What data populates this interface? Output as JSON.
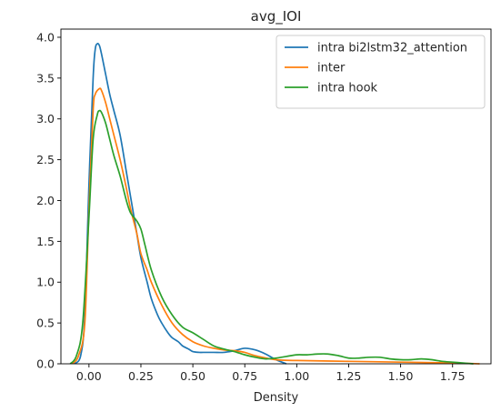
{
  "chart_data": {
    "type": "line",
    "title": "avg_IOI",
    "xlabel": "Density",
    "ylabel": "",
    "xlim": [
      -0.135,
      1.935
    ],
    "ylim": [
      0,
      4.1
    ],
    "xticks": [
      0.0,
      0.25,
      0.5,
      0.75,
      1.0,
      1.25,
      1.5,
      1.75
    ],
    "xtick_labels": [
      "0.00",
      "0.25",
      "0.50",
      "0.75",
      "1.00",
      "1.25",
      "1.50",
      "1.75"
    ],
    "yticks": [
      0.0,
      0.5,
      1.0,
      1.5,
      2.0,
      2.5,
      3.0,
      3.5,
      4.0
    ],
    "ytick_labels": [
      "0.0",
      "0.5",
      "1.0",
      "1.5",
      "2.0",
      "2.5",
      "3.0",
      "3.5",
      "4.0"
    ],
    "grid": false,
    "legend_position": "top-right",
    "series": [
      {
        "name": "intra bi2lstm32_attention",
        "color": "#1f77b4",
        "x": [
          -0.07,
          -0.04,
          -0.02,
          0.0,
          0.02,
          0.03,
          0.04,
          0.05,
          0.06,
          0.08,
          0.1,
          0.12,
          0.15,
          0.18,
          0.2,
          0.23,
          0.25,
          0.28,
          0.3,
          0.33,
          0.35,
          0.38,
          0.4,
          0.43,
          0.45,
          0.48,
          0.5,
          0.53,
          0.55,
          0.6,
          0.65,
          0.7,
          0.75,
          0.8,
          0.85,
          0.9,
          0.95
        ],
        "y": [
          0.0,
          0.1,
          0.6,
          2.2,
          3.5,
          3.85,
          3.92,
          3.9,
          3.8,
          3.55,
          3.3,
          3.1,
          2.8,
          2.35,
          2.05,
          1.6,
          1.3,
          1.0,
          0.8,
          0.6,
          0.5,
          0.38,
          0.32,
          0.27,
          0.22,
          0.18,
          0.15,
          0.14,
          0.14,
          0.14,
          0.14,
          0.16,
          0.19,
          0.17,
          0.12,
          0.05,
          0.0
        ]
      },
      {
        "name": "inter",
        "color": "#ff7f0e",
        "x": [
          -0.08,
          -0.05,
          -0.02,
          0.0,
          0.02,
          0.03,
          0.05,
          0.06,
          0.08,
          0.1,
          0.12,
          0.15,
          0.18,
          0.2,
          0.23,
          0.25,
          0.28,
          0.3,
          0.35,
          0.4,
          0.45,
          0.5,
          0.55,
          0.6,
          0.65,
          0.7,
          0.75,
          0.8,
          0.9,
          1.0,
          1.25,
          1.5,
          1.75,
          1.88
        ],
        "y": [
          0.0,
          0.1,
          0.5,
          1.9,
          3.1,
          3.3,
          3.37,
          3.35,
          3.2,
          3.0,
          2.8,
          2.5,
          2.15,
          1.9,
          1.6,
          1.35,
          1.15,
          1.0,
          0.72,
          0.5,
          0.36,
          0.27,
          0.22,
          0.19,
          0.17,
          0.16,
          0.14,
          0.1,
          0.05,
          0.04,
          0.03,
          0.02,
          0.01,
          0.0
        ]
      },
      {
        "name": "intra hook",
        "color": "#2ca02c",
        "x": [
          -0.09,
          -0.06,
          -0.03,
          0.0,
          0.02,
          0.04,
          0.05,
          0.06,
          0.08,
          0.1,
          0.12,
          0.15,
          0.18,
          0.2,
          0.23,
          0.25,
          0.27,
          0.3,
          0.35,
          0.4,
          0.45,
          0.5,
          0.55,
          0.6,
          0.65,
          0.7,
          0.75,
          0.8,
          0.85,
          0.9,
          0.95,
          1.0,
          1.05,
          1.1,
          1.15,
          1.2,
          1.25,
          1.3,
          1.35,
          1.4,
          1.45,
          1.5,
          1.55,
          1.6,
          1.65,
          1.7,
          1.75,
          1.8,
          1.85
        ],
        "y": [
          0.0,
          0.1,
          0.5,
          1.8,
          2.75,
          3.05,
          3.1,
          3.08,
          2.95,
          2.75,
          2.55,
          2.3,
          2.0,
          1.85,
          1.75,
          1.65,
          1.45,
          1.15,
          0.82,
          0.6,
          0.45,
          0.38,
          0.3,
          0.22,
          0.18,
          0.15,
          0.11,
          0.08,
          0.06,
          0.07,
          0.09,
          0.11,
          0.11,
          0.12,
          0.12,
          0.1,
          0.07,
          0.07,
          0.08,
          0.08,
          0.06,
          0.05,
          0.05,
          0.06,
          0.05,
          0.03,
          0.02,
          0.01,
          0.0
        ]
      }
    ]
  }
}
